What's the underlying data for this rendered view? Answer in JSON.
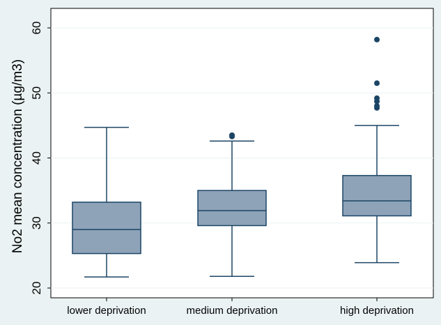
{
  "chart_data": {
    "type": "box",
    "title": "",
    "xlabel": "",
    "ylabel": "No2 mean concentration (µg/m3)",
    "ylim": [
      19.5,
      62
    ],
    "yticks": [
      20,
      30,
      40,
      50,
      60
    ],
    "ytick_labels": [
      "20",
      "30",
      "40",
      "50",
      "60"
    ],
    "grid": true,
    "categories": [
      "lower deprivation",
      "medium deprivation",
      "high deprivation"
    ],
    "boxes": [
      {
        "category": "lower deprivation",
        "min": 21.7,
        "q1": 25.3,
        "median": 29.0,
        "q3": 33.2,
        "max": 44.7,
        "outliers": []
      },
      {
        "category": "medium deprivation",
        "min": 21.8,
        "q1": 29.6,
        "median": 31.9,
        "q3": 35.0,
        "max": 42.6,
        "outliers": [
          43.3,
          43.5
        ]
      },
      {
        "category": "high deprivation",
        "min": 23.9,
        "q1": 31.1,
        "median": 33.4,
        "q3": 37.3,
        "max": 45.0,
        "outliers": [
          47.7,
          48.0,
          48.7,
          49.2,
          51.5,
          58.2
        ]
      }
    ],
    "colors": {
      "box_fill": "#8ea3b8",
      "box_stroke": "#1b4565",
      "outlier": "#1b4565",
      "grid": "#eaf2f3",
      "plot_bg": "#ffffff",
      "page_bg": "#eaf2f3"
    }
  }
}
